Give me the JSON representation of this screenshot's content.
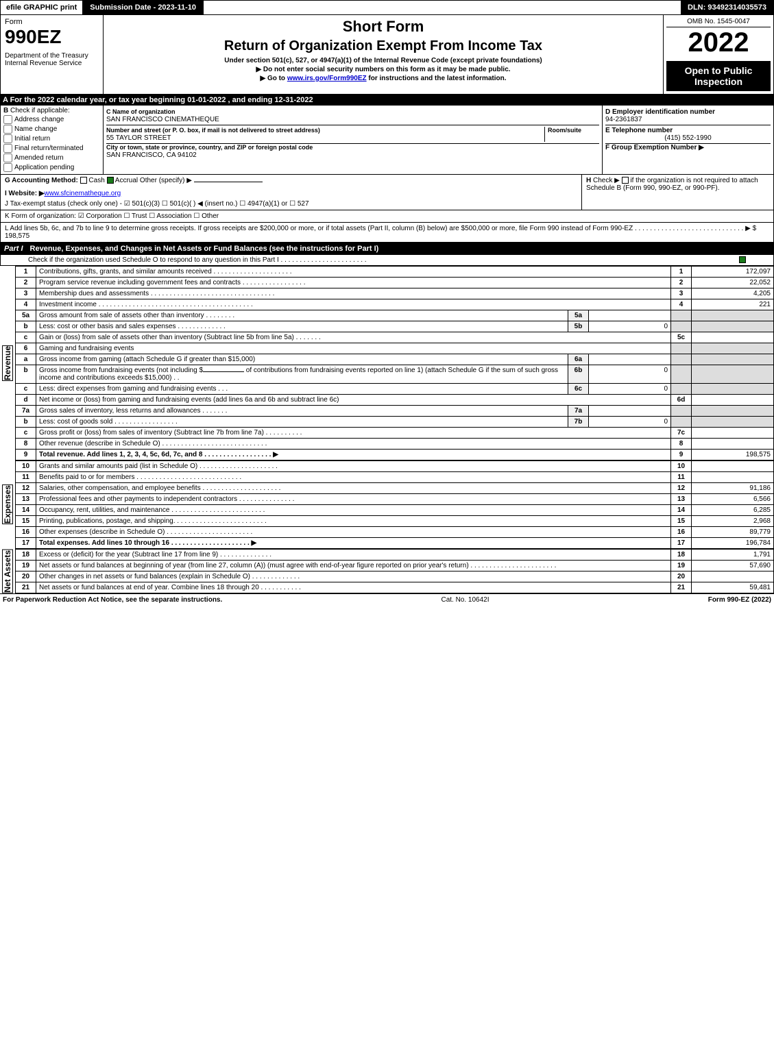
{
  "topbar": {
    "efile": "efile GRAPHIC print",
    "subdate": "Submission Date - 2023-11-10",
    "dln": "DLN: 93492314035573"
  },
  "header": {
    "form_label": "Form",
    "form_number": "990EZ",
    "dept": "Department of the Treasury\nInternal Revenue Service",
    "short_form": "Short Form",
    "main_title": "Return of Organization Exempt From Income Tax",
    "subtitle": "Under section 501(c), 527, or 4947(a)(1) of the Internal Revenue Code (except private foundations)",
    "instr1": "▶ Do not enter social security numbers on this form as it may be made public.",
    "instr2_pre": "▶ Go to ",
    "instr2_link": "www.irs.gov/Form990EZ",
    "instr2_post": " for instructions and the latest information.",
    "omb": "OMB No. 1545-0047",
    "year": "2022",
    "black_box": "Open to Public Inspection"
  },
  "section_a": "A  For the 2022 calendar year, or tax year beginning 01-01-2022 , and ending 12-31-2022",
  "section_b": {
    "label": "B",
    "check_if": "Check if applicable:",
    "opts": [
      "Address change",
      "Name change",
      "Initial return",
      "Final return/terminated",
      "Amended return",
      "Application pending"
    ]
  },
  "section_c": {
    "label_c": "C Name of organization",
    "org_name": "SAN FRANCISCO CINEMATHEQUE",
    "street_label": "Number and street (or P. O. box, if mail is not delivered to street address)",
    "room_label": "Room/suite",
    "street": "55 TAYLOR STREET",
    "city_label": "City or town, state or province, country, and ZIP or foreign postal code",
    "city": "SAN FRANCISCO, CA  94102"
  },
  "section_d": {
    "label": "D Employer identification number",
    "ein": "94-2361837",
    "label_e": "E Telephone number",
    "phone": "(415) 552-1990",
    "label_f": "F Group Exemption Number   ▶"
  },
  "line_g": {
    "label": "G Accounting Method:",
    "cash": "Cash",
    "accrual": "Accrual",
    "other": "Other (specify) ▶"
  },
  "line_h": {
    "label": "H",
    "text": "Check ▶",
    "text2": "if the organization is not required to attach Schedule B (Form 990, 990-EZ, or 990-PF)."
  },
  "line_i": {
    "label": "I Website: ▶",
    "url": "www.sfcinematheque.org"
  },
  "line_j": "J Tax-exempt status (check only one) - ☑ 501(c)(3)  ☐ 501(c)(  ) ◀ (insert no.)  ☐ 4947(a)(1) or  ☐ 527",
  "line_k": "K Form of organization:  ☑ Corporation  ☐ Trust  ☐ Association  ☐ Other",
  "line_l": {
    "text": "L Add lines 5b, 6c, and 7b to line 9 to determine gross receipts. If gross receipts are $200,000 or more, or if total assets (Part II, column (B) below) are $500,000 or more, file Form 990 instead of Form 990-EZ . . . . . . . . . . . . . . . . . . . . . . . . . . . . . ▶ $",
    "amount": "198,575"
  },
  "part1": {
    "label": "Part I",
    "title": "Revenue, Expenses, and Changes in Net Assets or Fund Balances (see the instructions for Part I)",
    "check_text": "Check if the organization used Schedule O to respond to any question in this Part I . . . . . . . . . . . . . . . . . . . . . . ."
  },
  "revenue": {
    "side_label": "Revenue",
    "lines": [
      {
        "num": "1",
        "desc": "Contributions, gifts, grants, and similar amounts received . . . . . . . . . . . . . . . . . . . . .",
        "rnum": "1",
        "rval": "172,097"
      },
      {
        "num": "2",
        "desc": "Program service revenue including government fees and contracts . . . . . . . . . . . . . . . . .",
        "rnum": "2",
        "rval": "22,052"
      },
      {
        "num": "3",
        "desc": "Membership dues and assessments . . . . . . . . . . . . . . . . . . . . . . . . . . . . . . . . .",
        "rnum": "3",
        "rval": "4,205"
      },
      {
        "num": "4",
        "desc": "Investment income . . . . . . . . . . . . . . . . . . . . . . . . . . . . . . . . . . . . . . . . .",
        "rnum": "4",
        "rval": "221"
      }
    ],
    "line5a": {
      "num": "5a",
      "desc": "Gross amount from sale of assets other than inventory . . . . . . . .",
      "mnum": "5a",
      "mval": ""
    },
    "line5b": {
      "num": "b",
      "desc": "Less: cost or other basis and sales expenses . . . . . . . . . . . . .",
      "mnum": "5b",
      "mval": "0"
    },
    "line5c": {
      "num": "c",
      "desc": "Gain or (loss) from sale of assets other than inventory (Subtract line 5b from line 5a) . . . . . . .",
      "rnum": "5c",
      "rval": ""
    },
    "line6": {
      "num": "6",
      "desc": "Gaming and fundraising events"
    },
    "line6a": {
      "num": "a",
      "desc": "Gross income from gaming (attach Schedule G if greater than $15,000)",
      "mnum": "6a",
      "mval": ""
    },
    "line6b": {
      "num": "b",
      "desc1": "Gross income from fundraising events (not including $",
      "desc2": "of contributions from fundraising events reported on line 1) (attach Schedule G if the sum of such gross income and contributions exceeds $15,000)   .  .",
      "mnum": "6b",
      "mval": "0"
    },
    "line6c": {
      "num": "c",
      "desc": "Less: direct expenses from gaming and fundraising events   . . .",
      "mnum": "6c",
      "mval": "0"
    },
    "line6d": {
      "num": "d",
      "desc": "Net income or (loss) from gaming and fundraising events (add lines 6a and 6b and subtract line 6c)",
      "rnum": "6d",
      "rval": ""
    },
    "line7a": {
      "num": "7a",
      "desc": "Gross sales of inventory, less returns and allowances . . . . . . .",
      "mnum": "7a",
      "mval": ""
    },
    "line7b": {
      "num": "b",
      "desc": "Less: cost of goods sold     . . . . . . . . . . . . . . . . .",
      "mnum": "7b",
      "mval": "0"
    },
    "line7c": {
      "num": "c",
      "desc": "Gross profit or (loss) from sales of inventory (Subtract line 7b from line 7a) . . . . . . . . . .",
      "rnum": "7c",
      "rval": ""
    },
    "line8": {
      "num": "8",
      "desc": "Other revenue (describe in Schedule O) . . . . . . . . . . . . . . . . . . . . . . . . . . . .",
      "rnum": "8",
      "rval": ""
    },
    "line9": {
      "num": "9",
      "desc": "Total revenue. Add lines 1, 2, 3, 4, 5c, 6d, 7c, and 8  . . . . . . . . . . . . . . . . . .  ▶",
      "rnum": "9",
      "rval": "198,575"
    }
  },
  "expenses": {
    "side_label": "Expenses",
    "lines": [
      {
        "num": "10",
        "desc": "Grants and similar amounts paid (list in Schedule O) . . . . . . . . . . . . . . . . . . . . .",
        "rnum": "10",
        "rval": ""
      },
      {
        "num": "11",
        "desc": "Benefits paid to or for members     . . . . . . . . . . . . . . . . . . . . . . . . . . . .",
        "rnum": "11",
        "rval": ""
      },
      {
        "num": "12",
        "desc": "Salaries, other compensation, and employee benefits . . . . . . . . . . . . . . . . . . . . .",
        "rnum": "12",
        "rval": "91,186"
      },
      {
        "num": "13",
        "desc": "Professional fees and other payments to independent contractors . . . . . . . . . . . . . . .",
        "rnum": "13",
        "rval": "6,566"
      },
      {
        "num": "14",
        "desc": "Occupancy, rent, utilities, and maintenance . . . . . . . . . . . . . . . . . . . . . . . . .",
        "rnum": "14",
        "rval": "6,285"
      },
      {
        "num": "15",
        "desc": "Printing, publications, postage, and shipping. . . . . . . . . . . . . . . . . . . . . . . . .",
        "rnum": "15",
        "rval": "2,968"
      },
      {
        "num": "16",
        "desc": "Other expenses (describe in Schedule O)     . . . . . . . . . . . . . . . . . . . . . . .",
        "rnum": "16",
        "rval": "89,779"
      },
      {
        "num": "17",
        "desc": "Total expenses. Add lines 10 through 16     . . . . . . . . . . . . . . . . . . . . .  ▶",
        "rnum": "17",
        "rval": "196,784",
        "bold": true
      }
    ]
  },
  "netassets": {
    "side_label": "Net Assets",
    "lines": [
      {
        "num": "18",
        "desc": "Excess or (deficit) for the year (Subtract line 17 from line 9)     . . . . . . . . . . . . . .",
        "rnum": "18",
        "rval": "1,791"
      },
      {
        "num": "19",
        "desc": "Net assets or fund balances at beginning of year (from line 27, column (A)) (must agree with end-of-year figure reported on prior year's return) . . . . . . . . . . . . . . . . . . . . . . .",
        "rnum": "19",
        "rval": "57,690"
      },
      {
        "num": "20",
        "desc": "Other changes in net assets or fund balances (explain in Schedule O) . . . . . . . . . . . . .",
        "rnum": "20",
        "rval": ""
      },
      {
        "num": "21",
        "desc": "Net assets or fund balances at end of year. Combine lines 18 through 20 . . . . . . . . . . .",
        "rnum": "21",
        "rval": "59,481"
      }
    ]
  },
  "footer": {
    "left": "For Paperwork Reduction Act Notice, see the separate instructions.",
    "center": "Cat. No. 10642I",
    "right": "Form 990-EZ (2022)"
  }
}
